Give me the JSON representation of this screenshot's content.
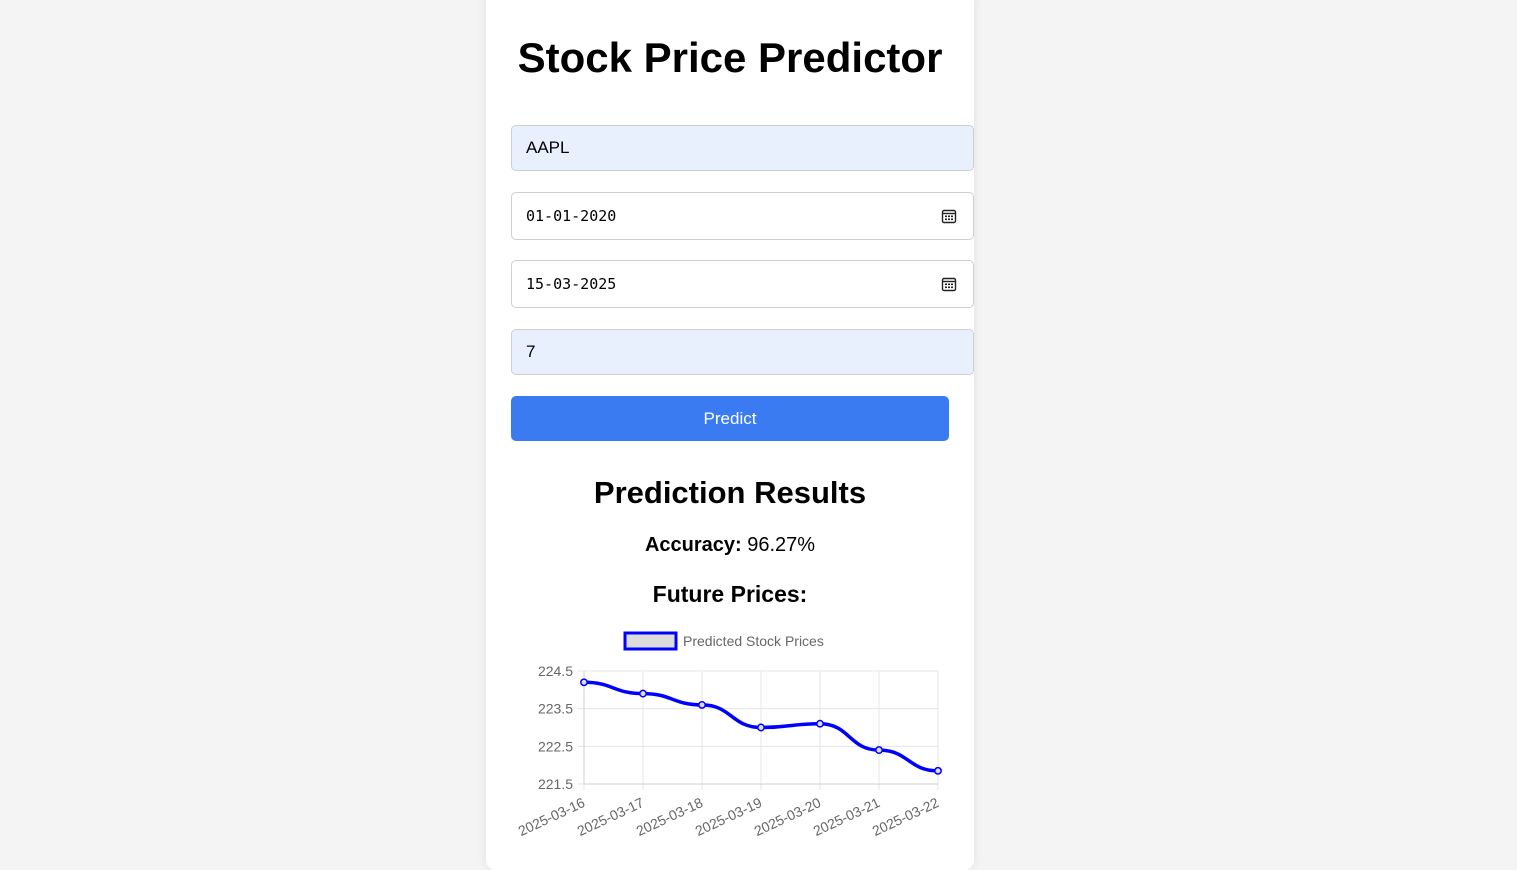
{
  "page": {
    "title": "Stock Price Predictor"
  },
  "form": {
    "ticker_value": "AAPL",
    "start_date_value": "01-01-2020",
    "end_date_value": "15-03-2025",
    "days_value": "7",
    "predict_label": "Predict"
  },
  "results": {
    "title": "Prediction Results",
    "accuracy_label": "Accuracy:",
    "accuracy_value": "96.27%",
    "future_title": "Future Prices:"
  },
  "icons": {
    "start_date_icon": "calendar-icon",
    "end_date_icon": "calendar-icon"
  },
  "colors": {
    "accent": "#3a7bf2",
    "autofill_bg": "#e8f0fe",
    "series_line": "#0000ff",
    "legend_fill": "#dcdcdc"
  },
  "chart_data": {
    "type": "line",
    "title": "",
    "xlabel": "",
    "ylabel": "",
    "x": [
      "2025-03-16",
      "2025-03-17",
      "2025-03-18",
      "2025-03-19",
      "2025-03-20",
      "2025-03-21",
      "2025-03-22"
    ],
    "series": [
      {
        "name": "Predicted Stock Prices",
        "values": [
          224.2,
          223.9,
          223.6,
          223.0,
          223.1,
          222.4,
          221.85
        ]
      }
    ],
    "yticks": [
      "224.5",
      "223.5",
      "222.5",
      "221.5"
    ],
    "ylim": [
      221.5,
      224.5
    ],
    "grid": true,
    "legend_position": "top"
  }
}
